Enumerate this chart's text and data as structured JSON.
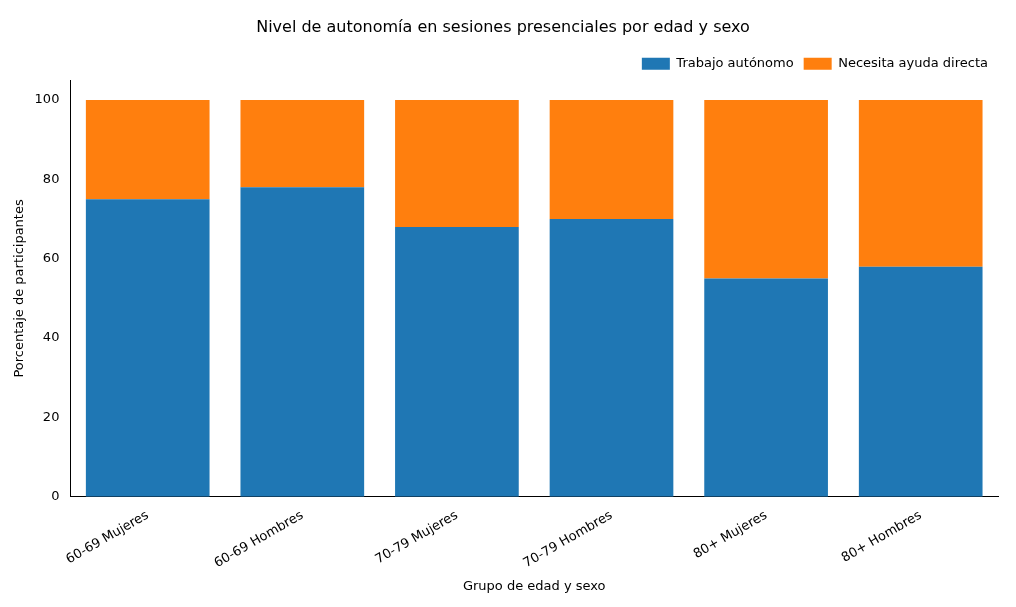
{
  "chart_data": {
    "type": "bar",
    "title": "Nivel de autonomía en sesiones presenciales por edad y sexo",
    "xlabel": "Grupo de edad y sexo",
    "ylabel": "Porcentaje de participantes",
    "categories": [
      "60-69 Mujeres",
      "60-69 Hombres",
      "70-79 Mujeres",
      "70-79 Hombres",
      "80+ Mujeres",
      "80+ Hombres"
    ],
    "stacked": true,
    "series": [
      {
        "name": "Trabajo autónomo",
        "color": "#1f77b4",
        "values": [
          75,
          78,
          68,
          70,
          55,
          58
        ]
      },
      {
        "name": "Necesita ayuda directa",
        "color": "#ff7f0e",
        "values": [
          25,
          22,
          32,
          30,
          45,
          42
        ]
      }
    ],
    "ylim": [
      0,
      105
    ],
    "yticks": [
      0,
      20,
      40,
      60,
      80,
      100
    ],
    "grid": false,
    "legend": "top right"
  }
}
